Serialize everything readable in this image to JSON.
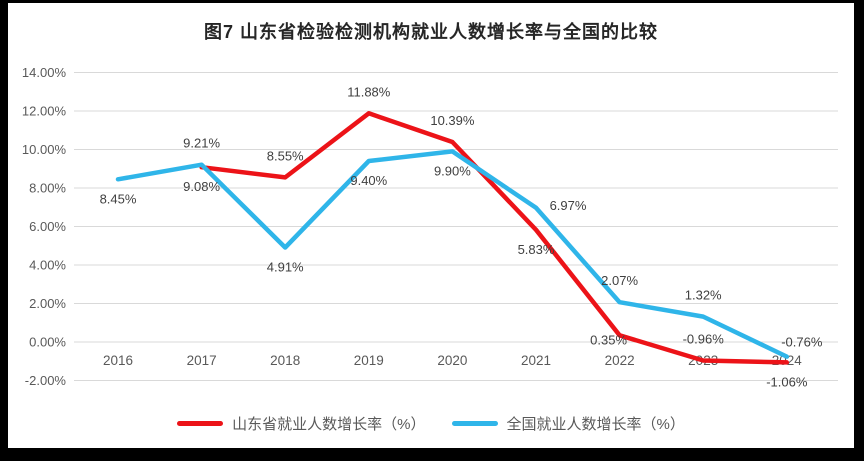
{
  "chart": {
    "title": "图7  山东省检验检测机构就业人数增长率与全国的比较"
  },
  "chart_data": {
    "type": "line",
    "title": "图7  山东省检验检测机构就业人数增长率与全国的比较",
    "x": [
      "2016",
      "2017",
      "2018",
      "2019",
      "2020",
      "2021",
      "2022",
      "2023",
      "2024"
    ],
    "series": [
      {
        "name": "山东省就业人数增长率（%）",
        "color": "#EC1318",
        "values": [
          null,
          9.08,
          8.55,
          11.88,
          10.39,
          5.83,
          0.35,
          -0.96,
          -1.06
        ],
        "labels": [
          null,
          "9.08%",
          "8.55%",
          "11.88%",
          "10.39%",
          "5.83%",
          "0.35%",
          "-0.96%",
          "-1.06%"
        ],
        "label_placements": [
          null,
          "below",
          "above",
          "above",
          "above",
          "below",
          "below-left",
          "above",
          "below"
        ]
      },
      {
        "name": "全国就业人数增长率（%）",
        "color": "#2FB5E9",
        "values": [
          8.45,
          9.21,
          4.91,
          9.4,
          9.9,
          6.97,
          2.07,
          1.32,
          -0.76
        ],
        "labels": [
          "8.45%",
          "9.21%",
          "4.91%",
          "9.40%",
          "9.90%",
          "6.97%",
          "2.07%",
          "1.32%",
          "-0.76%"
        ],
        "label_placements": [
          "below",
          "above",
          "below",
          "below",
          "below",
          "right",
          "above",
          "above",
          "above-right"
        ]
      }
    ],
    "xlabel": "",
    "ylabel": "",
    "ylim": [
      -2,
      14
    ],
    "ytick_step": 2,
    "ytick_labels": [
      "14.00%",
      "12.00%",
      "10.00%",
      "8.00%",
      "6.00%",
      "4.00%",
      "2.00%",
      "0.00%",
      "-2.00%"
    ],
    "grid": "horizontal",
    "legend_position": "bottom",
    "colors": {
      "axis_text": "#595959",
      "data_label_text": "#404040",
      "gridline": "#D9D9D9",
      "title_text": "#262626",
      "frame": "#000000",
      "background": "#FFFFFF"
    }
  }
}
